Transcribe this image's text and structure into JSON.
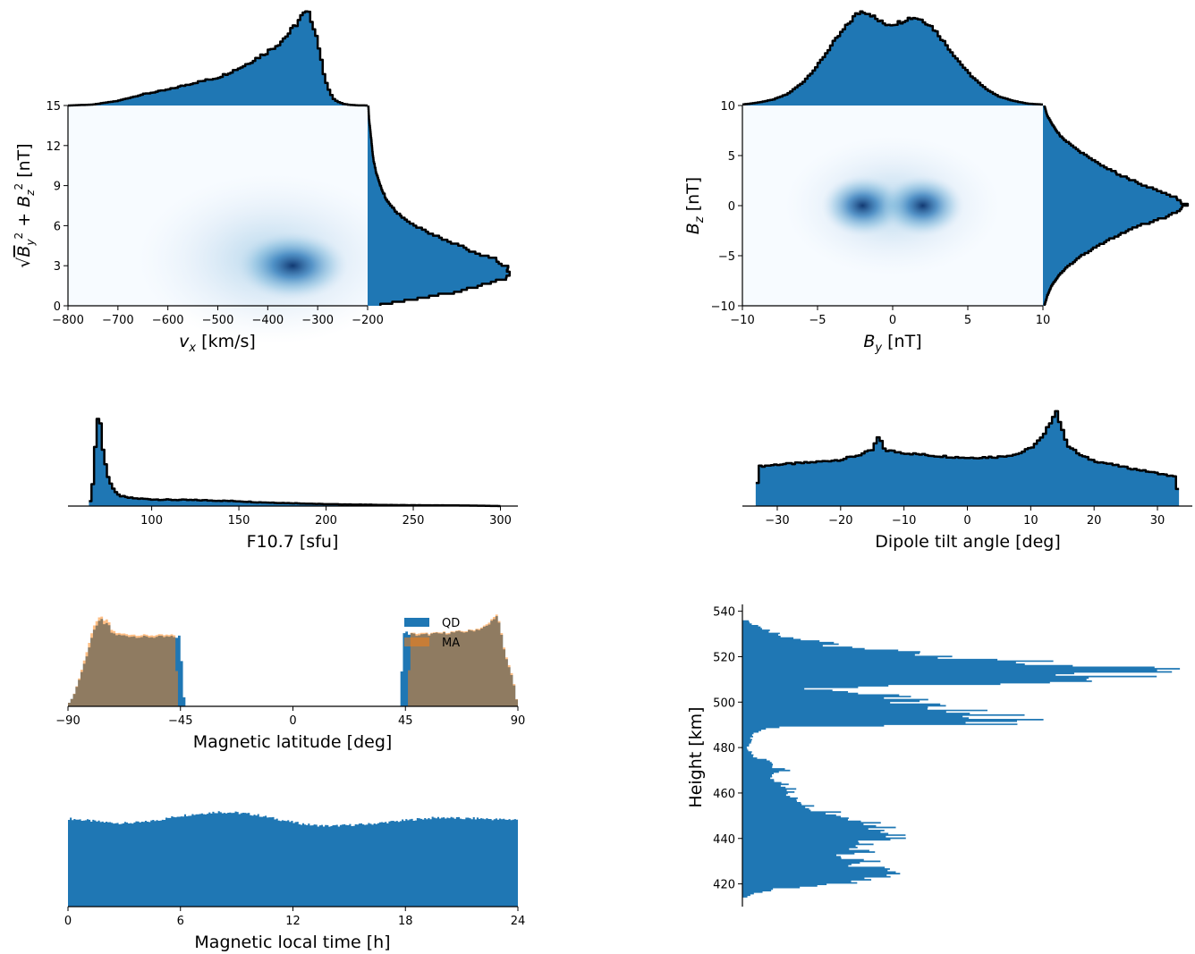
{
  "colors": {
    "bar": "#1f77b4",
    "ma": "#ff7f0e",
    "overlap": "#8f7a5c",
    "outline": "#000000",
    "heatmap_peak": "#08306b"
  },
  "chart_data": [
    {
      "id": "vx_b",
      "type": "heatmap",
      "xlabel_main": "v",
      "xlabel_sub": "x",
      "xlabel_unit": " [km/s]",
      "ylabel": "√(B_y² + B_z²) [nT]",
      "xlim": [
        -800,
        -200
      ],
      "ylim": [
        0,
        15
      ],
      "xticks": [
        -800,
        -700,
        -600,
        -500,
        -400,
        -300,
        -200
      ],
      "yticks": [
        0,
        3,
        6,
        9,
        12,
        15
      ],
      "xtick_labels": [
        "−800",
        "−700",
        "−600",
        "−500",
        "−400",
        "−300",
        "−200"
      ],
      "ytick_labels": [
        "0",
        "3",
        "6",
        "9",
        "12",
        "15"
      ],
      "density_peak": {
        "x": -350,
        "y": 3
      },
      "marginal_x": {
        "x": [
          -800,
          -750,
          -700,
          -650,
          -600,
          -550,
          -500,
          -475,
          -450,
          -425,
          -400,
          -375,
          -350,
          -340,
          -330,
          -320,
          -310,
          -300,
          -290,
          -280,
          -270,
          -260,
          -250,
          -240,
          -230,
          -220,
          -210,
          -200
        ],
        "y": [
          0,
          0.01,
          0.05,
          0.12,
          0.17,
          0.24,
          0.3,
          0.36,
          0.42,
          0.5,
          0.58,
          0.68,
          0.82,
          0.9,
          0.97,
          1.0,
          0.9,
          0.7,
          0.4,
          0.2,
          0.08,
          0.04,
          0.02,
          0.01,
          0.005,
          0.002,
          0.001,
          0
        ]
      },
      "marginal_y": {
        "y": [
          0,
          1,
          2,
          2.5,
          3,
          3.5,
          4,
          5,
          6,
          7,
          8,
          9,
          10,
          11,
          12,
          13,
          14,
          15
        ],
        "x": [
          0.05,
          0.6,
          0.95,
          1.0,
          0.98,
          0.88,
          0.75,
          0.52,
          0.33,
          0.2,
          0.13,
          0.09,
          0.06,
          0.04,
          0.03,
          0.02,
          0.01,
          0.005
        ]
      }
    },
    {
      "id": "by_bz",
      "type": "heatmap",
      "xlabel_main": "B",
      "xlabel_sub": "y",
      "xlabel_unit": " [nT]",
      "ylabel_main": "B",
      "ylabel_sub": "z",
      "ylabel_unit": " [nT]",
      "xlim": [
        -10,
        10
      ],
      "ylim": [
        -10,
        10
      ],
      "xticks": [
        -10,
        -5,
        0,
        5,
        10
      ],
      "yticks": [
        -10,
        -5,
        0,
        5,
        10
      ],
      "xtick_labels": [
        "−10",
        "−5",
        "0",
        "5",
        "10"
      ],
      "ytick_labels": [
        "−10",
        "−5",
        "0",
        "5",
        "10"
      ],
      "density_peaks": [
        {
          "x": -2,
          "y": 0
        },
        {
          "x": 2,
          "y": 0
        }
      ],
      "marginal_x": {
        "x": [
          -10,
          -9,
          -8,
          -7,
          -6,
          -5,
          -4,
          -3,
          -2.5,
          -2,
          -1.5,
          -1,
          -0.5,
          0,
          0.5,
          1,
          1.5,
          2,
          2.5,
          3,
          4,
          5,
          6,
          7,
          8,
          9,
          10
        ],
        "y": [
          0.01,
          0.03,
          0.06,
          0.12,
          0.24,
          0.42,
          0.65,
          0.85,
          0.95,
          1.0,
          0.97,
          0.9,
          0.86,
          0.86,
          0.88,
          0.92,
          0.93,
          0.9,
          0.85,
          0.76,
          0.55,
          0.35,
          0.2,
          0.1,
          0.05,
          0.02,
          0.01
        ]
      },
      "marginal_y": {
        "y": [
          -10,
          -9,
          -8,
          -7,
          -6,
          -5,
          -4,
          -3,
          -2,
          -1,
          -0.5,
          0,
          0.5,
          1,
          2,
          3,
          4,
          5,
          6,
          7,
          8,
          9,
          10
        ],
        "x": [
          0.01,
          0.03,
          0.06,
          0.11,
          0.18,
          0.27,
          0.38,
          0.52,
          0.68,
          0.88,
          0.97,
          1.0,
          0.98,
          0.9,
          0.72,
          0.55,
          0.42,
          0.3,
          0.2,
          0.12,
          0.07,
          0.03,
          0.01
        ]
      }
    },
    {
      "id": "f107",
      "type": "bar",
      "xlabel": "F10.7 [sfu]",
      "xlim": [
        52,
        310
      ],
      "xticks": [
        100,
        150,
        200,
        250,
        300
      ],
      "xtick_labels": [
        "100",
        "150",
        "200",
        "250",
        "300"
      ],
      "x": [
        64,
        66,
        68,
        70,
        72,
        74,
        76,
        78,
        80,
        85,
        90,
        95,
        100,
        110,
        120,
        130,
        140,
        150,
        160,
        170,
        180,
        190,
        200,
        220,
        240,
        260,
        280,
        300
      ],
      "y": [
        0,
        0.15,
        0.75,
        1.0,
        0.6,
        0.38,
        0.26,
        0.18,
        0.12,
        0.09,
        0.08,
        0.075,
        0.07,
        0.065,
        0.063,
        0.06,
        0.055,
        0.05,
        0.04,
        0.035,
        0.03,
        0.025,
        0.02,
        0.015,
        0.01,
        0.008,
        0.006,
        0
      ]
    },
    {
      "id": "tilt",
      "type": "bar",
      "xlabel": "Dipole tilt angle [deg]",
      "xlim": [
        -35.5,
        35.5
      ],
      "xticks": [
        -30,
        -20,
        -10,
        0,
        10,
        20,
        30
      ],
      "xtick_labels": [
        "−30",
        "−20",
        "−10",
        "0",
        "10",
        "20",
        "30"
      ],
      "x": [
        -33.4,
        -33,
        -30,
        -25,
        -20,
        -17,
        -15,
        -14,
        -13,
        -10,
        -5,
        0,
        5,
        8,
        10,
        12,
        13,
        14,
        15,
        16,
        18,
        20,
        25,
        30,
        33,
        33.4
      ],
      "y": [
        0,
        0.41,
        0.43,
        0.45,
        0.48,
        0.53,
        0.58,
        0.72,
        0.58,
        0.55,
        0.52,
        0.5,
        0.51,
        0.54,
        0.6,
        0.72,
        0.85,
        1.0,
        0.78,
        0.62,
        0.52,
        0.47,
        0.4,
        0.34,
        0.3,
        0
      ]
    },
    {
      "id": "mlat",
      "type": "bar",
      "xlabel": "Magnetic latitude [deg]",
      "xlim": [
        -90,
        90
      ],
      "xticks": [
        -90,
        -45,
        0,
        45,
        90
      ],
      "xtick_labels": [
        "−90",
        "−45",
        "0",
        "45",
        "90"
      ],
      "series": [
        {
          "name": "QD",
          "x": [
            -90,
            -88,
            -86,
            -84,
            -82,
            -80,
            -78,
            -77,
            -76,
            -75,
            -74,
            -73,
            -72,
            -70,
            -65,
            -60,
            -55,
            -50,
            -46,
            -45,
            -44,
            -43,
            43,
            44,
            45,
            46,
            50,
            55,
            60,
            65,
            70,
            75,
            78,
            80,
            81,
            82,
            83,
            84,
            85,
            86,
            88,
            90
          ],
          "y": [
            0.02,
            0.1,
            0.25,
            0.42,
            0.6,
            0.8,
            0.9,
            1.0,
            0.88,
            0.9,
            0.93,
            0.82,
            0.8,
            0.78,
            0.77,
            0.76,
            0.76,
            0.76,
            0.76,
            0.78,
            0.2,
            0,
            0,
            0.78,
            0.82,
            0.8,
            0.78,
            0.79,
            0.8,
            0.81,
            0.82,
            0.85,
            0.88,
            0.95,
            1.0,
            0.96,
            0.85,
            0.7,
            0.55,
            0.48,
            0.3,
            0
          ]
        },
        {
          "name": "MA",
          "x": [
            -90,
            -88,
            -86,
            -84,
            -82,
            -80,
            -78,
            -77,
            -76,
            -75,
            -74,
            -73,
            -72,
            -70,
            -65,
            -60,
            -55,
            -50,
            -47,
            -46,
            46,
            47,
            50,
            55,
            60,
            65,
            70,
            75,
            78,
            80,
            81,
            82,
            83,
            84,
            85,
            86,
            88,
            90
          ],
          "y": [
            0.02,
            0.1,
            0.26,
            0.45,
            0.65,
            0.85,
            0.95,
            1.02,
            0.92,
            0.94,
            0.97,
            0.85,
            0.83,
            0.8,
            0.79,
            0.78,
            0.78,
            0.78,
            0.78,
            0,
            0,
            0.8,
            0.8,
            0.8,
            0.81,
            0.82,
            0.83,
            0.86,
            0.9,
            0.97,
            1.02,
            0.98,
            0.87,
            0.72,
            0.57,
            0.5,
            0.32,
            0
          ]
        }
      ]
    },
    {
      "id": "mlt",
      "type": "bar",
      "xlabel": "Magnetic local time [h]",
      "xlim": [
        0,
        24
      ],
      "xticks": [
        0,
        6,
        12,
        18,
        24
      ],
      "xtick_labels": [
        "0",
        "6",
        "12",
        "18",
        "24"
      ],
      "x": [
        0,
        1,
        2,
        3,
        4,
        5,
        6,
        7,
        8,
        9,
        10,
        11,
        12,
        13,
        14,
        15,
        16,
        17,
        18,
        19,
        20,
        21,
        22,
        23,
        24
      ],
      "y": [
        0.93,
        0.91,
        0.89,
        0.88,
        0.89,
        0.92,
        0.96,
        0.98,
        1.0,
        0.99,
        0.97,
        0.93,
        0.89,
        0.86,
        0.85,
        0.86,
        0.87,
        0.89,
        0.91,
        0.93,
        0.94,
        0.93,
        0.93,
        0.92,
        0.92
      ]
    },
    {
      "id": "height",
      "type": "bar",
      "orientation": "horizontal",
      "ylabel": "Height [km]",
      "ylim": [
        410,
        543
      ],
      "yticks": [
        420,
        440,
        460,
        480,
        500,
        520,
        540
      ],
      "ytick_labels": [
        "420",
        "440",
        "460",
        "480",
        "500",
        "520",
        "540"
      ],
      "y": [
        414,
        416,
        418,
        420,
        422,
        424,
        426,
        428,
        430,
        432,
        434,
        436,
        438,
        440,
        442,
        444,
        446,
        448,
        450,
        452,
        454,
        456,
        458,
        460,
        462,
        464,
        466,
        468,
        470,
        472,
        474,
        476,
        478,
        480,
        482,
        484,
        486,
        488,
        489,
        490,
        492,
        494,
        496,
        498,
        500,
        502,
        504,
        506,
        508,
        510,
        512,
        514,
        516,
        518,
        520,
        522,
        524,
        526,
        528,
        530,
        532,
        534,
        536
      ],
      "x": [
        0.01,
        0.03,
        0.09,
        0.22,
        0.3,
        0.34,
        0.4,
        0.3,
        0.28,
        0.24,
        0.27,
        0.25,
        0.28,
        0.35,
        0.4,
        0.35,
        0.3,
        0.28,
        0.26,
        0.2,
        0.17,
        0.14,
        0.13,
        0.12,
        0.12,
        0.1,
        0.08,
        0.07,
        0.1,
        0.07,
        0.06,
        0.03,
        0.02,
        0.01,
        0.02,
        0.02,
        0.03,
        0.05,
        0.08,
        0.55,
        0.61,
        0.64,
        0.52,
        0.44,
        0.42,
        0.38,
        0.3,
        0.12,
        0.6,
        0.8,
        0.9,
        0.98,
        0.78,
        0.65,
        0.5,
        0.4,
        0.25,
        0.2,
        0.12,
        0.08,
        0.05,
        0.03,
        0.01
      ]
    }
  ],
  "legend": {
    "items": [
      {
        "label": "QD"
      },
      {
        "label": "MA"
      }
    ]
  }
}
